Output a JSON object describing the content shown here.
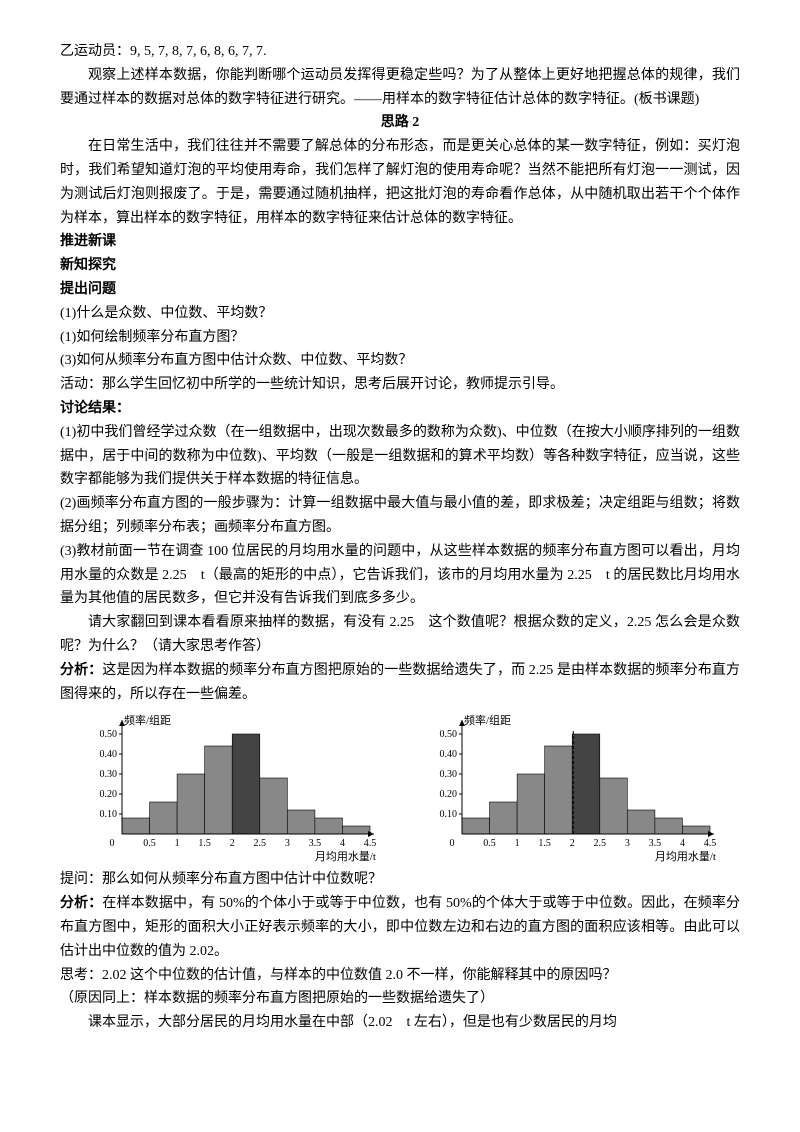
{
  "p_yi": "乙运动员：9, 5, 7, 8, 7, 6, 8, 6, 7, 7.",
  "p_intro1": "观察上述样本数据，你能判断哪个运动员发挥得更稳定些吗？为了从整体上更好地把握总体的规律，我们要通过样本的数据对总体的数字特征进行研究。——用样本的数字特征估计总体的数字特征。(板书课题)",
  "h_silu2": "思路 2",
  "p_silu2": "在日常生活中，我们往往并不需要了解总体的分布形态，而是更关心总体的某一数字特征，例如：买灯泡时，我们希望知道灯泡的平均使用寿命，我们怎样了解灯泡的使用寿命呢？当然不能把所有灯泡一一测试，因为测试后灯泡则报废了。于是，需要通过随机抽样，把这批灯泡的寿命看作总体，从中随机取出若干个个体作为样本，算出样本的数字特征，用样本的数字特征来估计总体的数字特征。",
  "h_tuijin": "推进新课",
  "h_xinzhi": "新知探究",
  "h_tichu": "提出问题",
  "q1": "(1)什么是众数、中位数、平均数？",
  "q2": "(1)如何绘制频率分布直方图？",
  "q3": "(3)如何从频率分布直方图中估计众数、中位数、平均数？",
  "p_huodong": "活动：那么学生回忆初中所学的一些统计知识，思考后展开讨论，教师提示引导。",
  "h_taolun": "讨论结果：",
  "a1": "(1)初中我们曾经学过众数（在一组数据中，出现次数最多的数称为众数)、中位数（在按大小顺序排列的一组数据中，居于中间的数称为中位数)、平均数（一般是一组数据和的算术平均数）等各种数字特征，应当说，这些数字都能够为我们提供关于样本数据的特征信息。",
  "a2": "(2)画频率分布直方图的一般步骤为：计算一组数据中最大值与最小值的差，即求极差；决定组距与组数；将数据分组；列频率分布表；画频率分布直方图。",
  "a3": "(3)教材前面一节在调查 100 位居民的月均用水量的问题中，从这些样本数据的频率分布直方图可以看出，月均用水量的众数是 2.25　t（最高的矩形的中点），它告诉我们，该市的月均用水量为 2.25　t 的居民数比月均用水量为其他值的居民数多，但它并没有告诉我们到底多多少。",
  "p_qing": "请大家翻回到课本看看原来抽样的数据，有没有 2.25　这个数值呢？根据众数的定义，2.25 怎么会是众数呢？为什么？（请大家思考作答）",
  "lbl_fenxi1": "分析：",
  "p_fenxi1": "这是因为样本数据的频率分布直方图把原始的一些数据给遗失了，而 2.25 是由样本数据的频率分布直方图得来的，所以存在一些偏差。",
  "chart": {
    "type": "histogram",
    "y_label": "频率/组距",
    "x_label": "月均用水量/t",
    "x_ticks": [
      0.5,
      1,
      1.5,
      2,
      2.5,
      3,
      3.5,
      4,
      4.5
    ],
    "y_ticks": [
      0.1,
      0.2,
      0.3,
      0.4,
      0.5
    ],
    "bar_colors": [
      "#888888",
      "#888888",
      "#888888",
      "#888888",
      "#444444",
      "#888888",
      "#888888",
      "#888888",
      "#888888"
    ],
    "values": [
      0.08,
      0.16,
      0.3,
      0.44,
      0.5,
      0.28,
      0.12,
      0.08,
      0.04
    ],
    "background_color": "#ffffff",
    "axis_color": "#000000",
    "label_fontsize": 10,
    "median_on_right": true,
    "median_x": 2.02
  },
  "p_tiwen": "提问：那么如何从频率分布直方图中估计中位数呢？",
  "lbl_fenxi2": "分析：",
  "p_fenxi2": "在样本数据中，有 50%的个体小于或等于中位数，也有 50%的个体大于或等于中位数。因此，在频率分布直方图中，矩形的面积大小正好表示频率的大小，即中位数左边和右边的直方图的面积应该相等。由此可以估计出中位数的值为 2.02。",
  "p_sikao": "思考：2.02 这个中位数的估计值，与样本的中位数值 2.0 不一样，你能解释其中的原因吗？",
  "p_reason": "（原因同上：样本数据的频率分布直方图把原始的一些数据给遗失了）",
  "p_keben": "课本显示，大部分居民的月均用水量在中部（2.02　t 左右），但是也有少数居民的月均"
}
